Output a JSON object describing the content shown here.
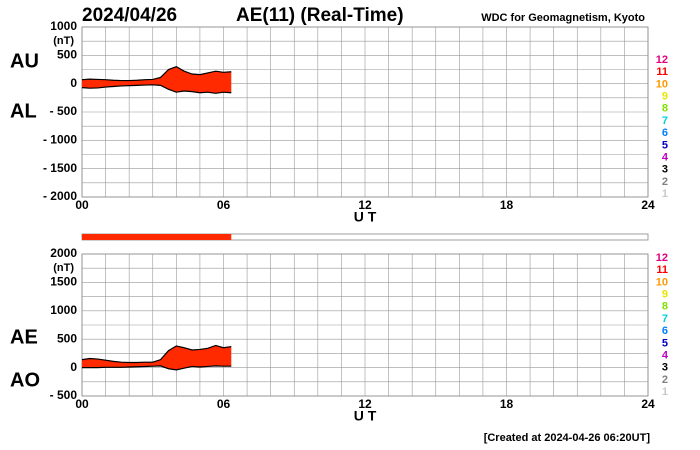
{
  "header": {
    "date": "2024/04/26",
    "title": "AE(11) (Real-Time)",
    "source": "WDC for Geomagnetism, Kyoto"
  },
  "footer": "[Created at 2024-04-26 06:20UT]",
  "coverage_bar": {
    "xlim": [
      0,
      24
    ],
    "end": 6.33,
    "color": "#ff2a00"
  },
  "station_legend": [
    {
      "label": "12",
      "color": "#e0007f"
    },
    {
      "label": "11",
      "color": "#ff0000"
    },
    {
      "label": "10",
      "color": "#ff9900"
    },
    {
      "label": "9",
      "color": "#e6e600"
    },
    {
      "label": "8",
      "color": "#80e000"
    },
    {
      "label": "7",
      "color": "#00d0e0"
    },
    {
      "label": "6",
      "color": "#0080ff"
    },
    {
      "label": "5",
      "color": "#0000c0"
    },
    {
      "label": "4",
      "color": "#c000c0"
    },
    {
      "label": "3",
      "color": "#000000"
    },
    {
      "label": "2",
      "color": "#808080"
    },
    {
      "label": "1",
      "color": "#c8c8c8"
    }
  ],
  "chart_data": [
    {
      "type": "range_area",
      "unit": "(nT)",
      "xlabel": "U T",
      "fill": "#ff2a00",
      "grid": true,
      "x": [
        0,
        0.33,
        0.67,
        1,
        1.33,
        1.67,
        2,
        2.33,
        2.67,
        3,
        3.33,
        3.67,
        4,
        4.33,
        4.67,
        5,
        5.33,
        5.67,
        6,
        6.33
      ],
      "series": [
        {
          "name": "AU",
          "color": "#000000",
          "values": [
            70,
            80,
            75,
            70,
            60,
            55,
            55,
            60,
            70,
            75,
            110,
            250,
            300,
            220,
            170,
            160,
            190,
            220,
            200,
            210
          ]
        },
        {
          "name": "AL",
          "color": "#000000",
          "values": [
            -70,
            -80,
            -75,
            -60,
            -50,
            -40,
            -35,
            -30,
            -25,
            -20,
            -30,
            -100,
            -150,
            -130,
            -140,
            -160,
            -150,
            -170,
            -150,
            -160
          ]
        }
      ],
      "xlim": [
        0,
        24
      ],
      "xticks": [
        {
          "value": 0,
          "label": "00"
        },
        {
          "value": 6,
          "label": "06"
        },
        12,
        18,
        24
      ],
      "ylim": [
        -2000,
        1000
      ],
      "yticks": [
        1000,
        500,
        0,
        {
          "value": -500,
          "label": "- 500"
        },
        {
          "value": -1000,
          "label": "- 1000"
        },
        {
          "value": -1500,
          "label": "- 1500"
        },
        {
          "value": -2000,
          "label": "- 2000"
        }
      ]
    },
    {
      "type": "range_area",
      "unit": "(nT)",
      "xlabel": "U T",
      "fill": "#ff2a00",
      "grid": true,
      "x": [
        0,
        0.33,
        0.67,
        1,
        1.33,
        1.67,
        2,
        2.33,
        2.67,
        3,
        3.33,
        3.67,
        4,
        4.33,
        4.67,
        5,
        5.33,
        5.67,
        6,
        6.33
      ],
      "series": [
        {
          "name": "AE",
          "color": "#000000",
          "values": [
            140,
            160,
            150,
            130,
            110,
            95,
            90,
            90,
            95,
            95,
            140,
            300,
            380,
            350,
            310,
            320,
            340,
            390,
            350,
            370
          ]
        },
        {
          "name": "AO",
          "color": "#000000",
          "values": [
            0,
            0,
            0,
            5,
            5,
            5,
            10,
            15,
            20,
            25,
            30,
            -20,
            -40,
            -10,
            20,
            10,
            20,
            30,
            25,
            25
          ]
        }
      ],
      "xlim": [
        0,
        24
      ],
      "xticks": [
        {
          "value": 0,
          "label": "00"
        },
        {
          "value": 6,
          "label": "06"
        },
        12,
        18,
        24
      ],
      "ylim": [
        -500,
        2000
      ],
      "yticks": [
        2000,
        1500,
        1000,
        500,
        0,
        {
          "value": -500,
          "label": "- 500"
        }
      ]
    }
  ]
}
